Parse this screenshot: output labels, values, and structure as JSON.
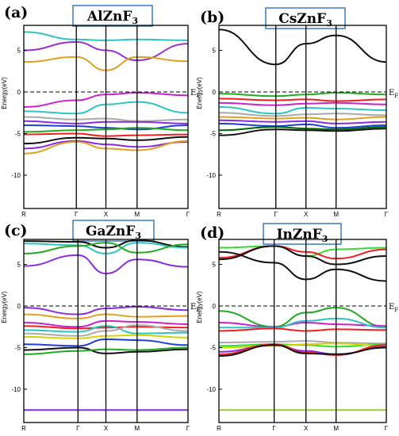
{
  "chart_data": [
    {
      "type": "line",
      "panel_label": "(a)",
      "compound": {
        "base": "AlZnF",
        "sub": "3"
      },
      "ylabel": "Energy(eV)",
      "fermi_label": {
        "main": "E",
        "sub": "F"
      },
      "k_labels": [
        "R",
        "Γ",
        "X",
        "M",
        "Γ"
      ],
      "k_positions": [
        0,
        0.32,
        0.5,
        0.69,
        1.0
      ],
      "ylim": [
        -14,
        8
      ],
      "yticks": [
        5,
        0,
        -5,
        -10
      ],
      "fermi_energy": 0,
      "series": [
        {
          "color": "#2ec4c4",
          "x": [
            0,
            0.32,
            0.5,
            0.69,
            1
          ],
          "y": [
            7.2,
            6.3,
            6.2,
            6.3,
            6.2
          ]
        },
        {
          "color": "#9b30d0",
          "x": [
            0,
            0.32,
            0.5,
            0.69,
            1
          ],
          "y": [
            5.0,
            6.0,
            5.0,
            3.8,
            5.8
          ]
        },
        {
          "color": "#e0a020",
          "x": [
            0,
            0.32,
            0.5,
            0.69,
            1
          ],
          "y": [
            3.6,
            4.2,
            2.6,
            4.2,
            3.7
          ]
        },
        {
          "color": "#cc22cc",
          "x": [
            0,
            0.32,
            0.5,
            0.69,
            1
          ],
          "y": [
            -1.8,
            -1.0,
            -0.3,
            -0.1,
            -0.4
          ]
        },
        {
          "color": "#2ec4c4",
          "x": [
            0,
            0.32,
            0.5,
            0.69,
            1
          ],
          "y": [
            -2.3,
            -2.6,
            -1.5,
            -1.2,
            -2.5
          ]
        },
        {
          "color": "#aaaaaa",
          "x": [
            0,
            0.32,
            0.5,
            0.69,
            1
          ],
          "y": [
            -3.0,
            -3.3,
            -3.2,
            -3.5,
            -3.3
          ]
        },
        {
          "color": "#8a2be2",
          "x": [
            0,
            0.32,
            0.5,
            0.69,
            1
          ],
          "y": [
            -3.5,
            -3.8,
            -3.6,
            -3.6,
            -3.8
          ]
        },
        {
          "color": "#1f3fd0",
          "x": [
            0,
            0.32,
            0.5,
            0.69,
            1
          ],
          "y": [
            -4.0,
            -4.1,
            -4.3,
            -4.5,
            -4.0
          ]
        },
        {
          "color": "#22aa22",
          "x": [
            0,
            0.32,
            0.5,
            0.69,
            1
          ],
          "y": [
            -4.8,
            -4.6,
            -4.5,
            -4.3,
            -4.6
          ]
        },
        {
          "color": "#ee2020",
          "x": [
            0,
            0.32,
            0.5,
            0.69,
            1
          ],
          "y": [
            -5.1,
            -5.0,
            -5.3,
            -5.2,
            -5.1
          ]
        },
        {
          "color": "#111111",
          "x": [
            0,
            0.32,
            0.5,
            0.69,
            1
          ],
          "y": [
            -6.2,
            -5.5,
            -5.6,
            -5.8,
            -5.4
          ]
        },
        {
          "color": "#8a2be2",
          "x": [
            0,
            0.32,
            0.5,
            0.69,
            1
          ],
          "y": [
            -6.8,
            -5.9,
            -6.3,
            -6.6,
            -6.0
          ]
        },
        {
          "color": "#e0a020",
          "x": [
            0,
            0.32,
            0.5,
            0.69,
            1
          ],
          "y": [
            -7.4,
            -6.0,
            -6.8,
            -7.0,
            -5.9
          ]
        }
      ]
    },
    {
      "type": "line",
      "panel_label": "(b)",
      "compound": {
        "base": "CsZnF",
        "sub": "3"
      },
      "ylabel": "Energy(eV)",
      "fermi_label": {
        "main": "E",
        "sub": "F"
      },
      "k_labels": [
        "R",
        "Γ",
        "X",
        "M",
        "Γ"
      ],
      "k_positions": [
        0,
        0.34,
        0.52,
        0.7,
        1.0
      ],
      "ylim": [
        -14,
        8
      ],
      "yticks": [
        5,
        0,
        -5,
        -10
      ],
      "fermi_energy": 0,
      "series": [
        {
          "color": "#111111",
          "x": [
            0,
            0.34,
            0.52,
            0.7,
            1
          ],
          "y": [
            7.5,
            3.3,
            5.8,
            6.8,
            3.6
          ]
        },
        {
          "color": "#22aa22",
          "x": [
            0,
            0.34,
            0.52,
            0.7,
            1
          ],
          "y": [
            -0.2,
            -0.5,
            -0.3,
            -0.1,
            -0.3
          ]
        },
        {
          "color": "#ee2020",
          "x": [
            0,
            0.34,
            0.52,
            0.7,
            1
          ],
          "y": [
            -0.8,
            -1.0,
            -0.9,
            -1.1,
            -0.9
          ]
        },
        {
          "color": "#cc22cc",
          "x": [
            0,
            0.34,
            0.52,
            0.7,
            1
          ],
          "y": [
            -1.3,
            -1.6,
            -1.4,
            -1.3,
            -1.5
          ]
        },
        {
          "color": "#2ec4c4",
          "x": [
            0,
            0.34,
            0.52,
            0.7,
            1
          ],
          "y": [
            -1.8,
            -2.6,
            -1.9,
            -2.0,
            -2.2
          ]
        },
        {
          "color": "#aaaaaa",
          "x": [
            0,
            0.34,
            0.52,
            0.7,
            1
          ],
          "y": [
            -2.5,
            -2.9,
            -2.7,
            -2.6,
            -2.8
          ]
        },
        {
          "color": "#e0a020",
          "x": [
            0,
            0.34,
            0.52,
            0.7,
            1
          ],
          "y": [
            -3.0,
            -3.2,
            -3.1,
            -3.3,
            -3.0
          ]
        },
        {
          "color": "#8a2be2",
          "x": [
            0,
            0.34,
            0.52,
            0.7,
            1
          ],
          "y": [
            -3.4,
            -3.6,
            -3.5,
            -3.8,
            -3.6
          ]
        },
        {
          "color": "#1f3fd0",
          "x": [
            0,
            0.34,
            0.52,
            0.7,
            1
          ],
          "y": [
            -3.8,
            -4.1,
            -3.9,
            -4.3,
            -4.0
          ]
        },
        {
          "color": "#006400",
          "x": [
            0,
            0.34,
            0.52,
            0.7,
            1
          ],
          "y": [
            -4.6,
            -4.2,
            -4.4,
            -4.5,
            -4.2
          ]
        },
        {
          "color": "#111111",
          "x": [
            0,
            0.34,
            0.52,
            0.7,
            1
          ],
          "y": [
            -5.2,
            -4.5,
            -4.6,
            -4.7,
            -4.4
          ]
        }
      ]
    },
    {
      "type": "line",
      "panel_label": "(c)",
      "compound": {
        "base": "GaZnF",
        "sub": "3"
      },
      "ylabel": "Energy(eV)",
      "fermi_label": {
        "main": "E",
        "sub": "F"
      },
      "k_labels": [
        "R",
        "Γ",
        "X",
        "M",
        "Γ"
      ],
      "k_positions": [
        0,
        0.33,
        0.5,
        0.69,
        1.0
      ],
      "ylim": [
        -14,
        8
      ],
      "yticks": [
        5,
        0,
        -5,
        -10
      ],
      "fermi_energy": 0,
      "series": [
        {
          "color": "#111111",
          "x": [
            0,
            0.33,
            0.5,
            0.69,
            1
          ],
          "y": [
            7.8,
            7.7,
            7.0,
            7.9,
            7.1
          ]
        },
        {
          "color": "#2ec4c4",
          "x": [
            0,
            0.33,
            0.5,
            0.69,
            1
          ],
          "y": [
            7.5,
            7.3,
            6.3,
            7.6,
            7.0
          ]
        },
        {
          "color": "#22aa22",
          "x": [
            0,
            0.33,
            0.5,
            0.69,
            1
          ],
          "y": [
            6.3,
            7.2,
            7.6,
            6.4,
            7.4
          ]
        },
        {
          "color": "#8a2be2",
          "x": [
            0,
            0.33,
            0.5,
            0.69,
            1
          ],
          "y": [
            4.8,
            6.1,
            3.9,
            5.6,
            4.7
          ]
        },
        {
          "color": "#8a2be2",
          "x": [
            0,
            0.33,
            0.5,
            0.69,
            1
          ],
          "y": [
            -0.2,
            -1.0,
            -0.3,
            -0.1,
            -0.5
          ]
        },
        {
          "color": "#e0a020",
          "x": [
            0,
            0.33,
            0.5,
            0.69,
            1
          ],
          "y": [
            -1.0,
            -1.5,
            -1.0,
            -1.3,
            -1.2
          ]
        },
        {
          "color": "#cc22cc",
          "x": [
            0,
            0.33,
            0.5,
            0.69,
            1
          ],
          "y": [
            -2.0,
            -2.5,
            -1.8,
            -1.9,
            -2.2
          ]
        },
        {
          "color": "#ee2020",
          "x": [
            0,
            0.33,
            0.5,
            0.69,
            1
          ],
          "y": [
            -2.4,
            -2.7,
            -2.6,
            -2.5,
            -2.6
          ]
        },
        {
          "color": "#2ec4c4",
          "x": [
            0,
            0.33,
            0.5,
            0.69,
            1
          ],
          "y": [
            -2.9,
            -3.1,
            -2.4,
            -3.3,
            -3.2
          ]
        },
        {
          "color": "#aaaaaa",
          "x": [
            0,
            0.33,
            0.5,
            0.69,
            1
          ],
          "y": [
            -3.3,
            -3.6,
            -3.0,
            -2.3,
            -3.0
          ]
        },
        {
          "color": "#d4d400",
          "x": [
            0,
            0.33,
            0.5,
            0.69,
            1
          ],
          "y": [
            -3.7,
            -3.9,
            -3.6,
            -3.5,
            -3.8
          ]
        },
        {
          "color": "#1f3fd0",
          "x": [
            0,
            0.33,
            0.5,
            0.69,
            1
          ],
          "y": [
            -4.6,
            -4.8,
            -4.0,
            -4.1,
            -4.7
          ]
        },
        {
          "color": "#111111",
          "x": [
            0,
            0.33,
            0.5,
            0.69,
            1
          ],
          "y": [
            -5.3,
            -5.0,
            -5.7,
            -5.5,
            -5.2
          ]
        },
        {
          "color": "#22aa22",
          "x": [
            0,
            0.33,
            0.5,
            0.69,
            1
          ],
          "y": [
            -5.8,
            -5.4,
            -5.2,
            -5.3,
            -5.0
          ]
        },
        {
          "color": "#8a2be2",
          "x": [
            0,
            0.33,
            0.5,
            0.69,
            1
          ],
          "y": [
            -12.5,
            -12.5,
            -12.5,
            -12.5,
            -12.5
          ]
        }
      ]
    },
    {
      "type": "line",
      "panel_label": "(d)",
      "compound": {
        "base": "InZnF",
        "sub": "3"
      },
      "ylabel": "Energy(eV)",
      "fermi_label": {
        "main": "E",
        "sub": "F"
      },
      "k_labels": [
        "R",
        "Γ",
        "X",
        "M",
        "Γ"
      ],
      "k_positions": [
        0,
        0.33,
        0.52,
        0.7,
        1.0
      ],
      "ylim": [
        -14,
        8
      ],
      "yticks": [
        5,
        0,
        -5,
        -10
      ],
      "fermi_energy": 0,
      "series": [
        {
          "color": "#33dd33",
          "x": [
            0,
            0.33,
            0.52,
            0.7,
            1
          ],
          "y": [
            7.0,
            7.2,
            6.0,
            6.8,
            7.0
          ]
        },
        {
          "color": "#ee2020",
          "x": [
            0,
            0.33,
            0.52,
            0.7,
            1
          ],
          "y": [
            5.8,
            7.2,
            6.5,
            5.7,
            6.8
          ]
        },
        {
          "color": "#111111",
          "x": [
            0,
            0.33,
            0.52,
            0.7,
            1
          ],
          "y": [
            5.6,
            7.2,
            6.0,
            5.0,
            6.0
          ]
        },
        {
          "color": "#111111",
          "x": [
            0,
            0.33,
            0.52,
            0.7,
            1
          ],
          "y": [
            6.5,
            5.2,
            3.2,
            4.4,
            3.0
          ]
        },
        {
          "color": "#22aa22",
          "x": [
            0,
            0.33,
            0.52,
            0.7,
            1
          ],
          "y": [
            -0.6,
            -2.5,
            -0.8,
            -0.2,
            -2.5
          ]
        },
        {
          "color": "#cc22cc",
          "x": [
            0,
            0.33,
            0.52,
            0.7,
            1
          ],
          "y": [
            -2.0,
            -2.5,
            -2.0,
            -2.2,
            -2.4
          ]
        },
        {
          "color": "#2ec4c4",
          "x": [
            0,
            0.33,
            0.52,
            0.7,
            1
          ],
          "y": [
            -2.6,
            -2.6,
            -1.8,
            -1.5,
            -2.6
          ]
        },
        {
          "color": "#ee2020",
          "x": [
            0,
            0.33,
            0.52,
            0.7,
            1
          ],
          "y": [
            -3.0,
            -2.7,
            -3.0,
            -2.8,
            -2.9
          ]
        },
        {
          "color": "#aaaaaa",
          "x": [
            0,
            0.33,
            0.52,
            0.7,
            1
          ],
          "y": [
            -4.4,
            -4.3,
            -4.2,
            -4.4,
            -4.5
          ]
        },
        {
          "color": "#33dd33",
          "x": [
            0,
            0.33,
            0.52,
            0.7,
            1
          ],
          "y": [
            -4.8,
            -4.6,
            -4.7,
            -4.9,
            -4.6
          ]
        },
        {
          "color": "#d4d400",
          "x": [
            0,
            0.33,
            0.52,
            0.7,
            1
          ],
          "y": [
            -5.0,
            -4.8,
            -4.6,
            -4.5,
            -4.8
          ]
        },
        {
          "color": "#8a2be2",
          "x": [
            0,
            0.33,
            0.52,
            0.7,
            1
          ],
          "y": [
            -5.5,
            -4.7,
            -5.4,
            -5.8,
            -4.9
          ]
        },
        {
          "color": "#ee2020",
          "x": [
            0,
            0.33,
            0.52,
            0.7,
            1
          ],
          "y": [
            -5.8,
            -4.6,
            -5.6,
            -5.9,
            -4.7
          ]
        },
        {
          "color": "#111111",
          "x": [
            0,
            0.33,
            0.52,
            0.7,
            1
          ],
          "y": [
            -6.0,
            -4.7,
            -5.7,
            -5.8,
            -5.0
          ]
        },
        {
          "color": "#9acd32",
          "x": [
            0,
            0.33,
            0.52,
            0.7,
            1
          ],
          "y": [
            -12.5,
            -12.5,
            -12.5,
            -12.5,
            -12.5
          ]
        }
      ]
    }
  ]
}
